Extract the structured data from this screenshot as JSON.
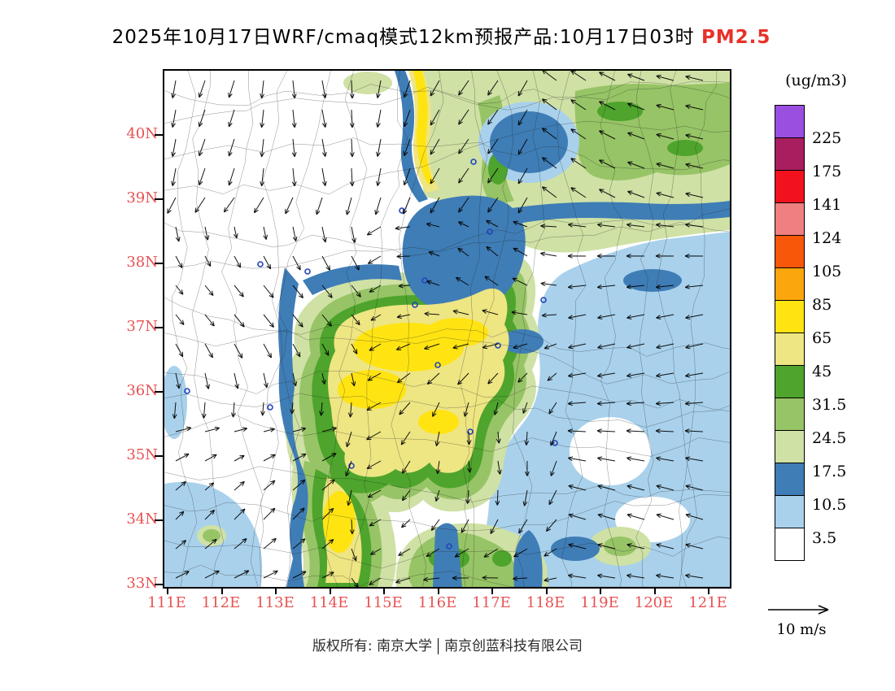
{
  "title": {
    "text": "2025年10月17日WRF/cmaq模式12km预报产品:10月17日03时",
    "pollutant": "PM2.5"
  },
  "colors": {
    "title_highlight": "#e8312a",
    "axis_label": "#e85252",
    "marker_blue": "#2244bb"
  },
  "axes": {
    "lat": [
      "40N",
      "39N",
      "38N",
      "37N",
      "36N",
      "35N",
      "34N",
      "33N"
    ],
    "lon": [
      "111E",
      "112E",
      "113E",
      "114E",
      "115E",
      "116E",
      "117E",
      "118E",
      "119E",
      "120E",
      "121E"
    ]
  },
  "legend": {
    "unit": "(ug/m3)",
    "labels": [
      "225",
      "175",
      "141",
      "124",
      "105",
      "85",
      "65",
      "45",
      "31.5",
      "24.5",
      "17.5",
      "10.5",
      "3.5"
    ],
    "colors": [
      "#9b4fe0",
      "#a81e5e",
      "#f2121e",
      "#ef7f81",
      "#f8570a",
      "#fba60c",
      "#ffe412",
      "#eee583",
      "#4ea42c",
      "#97c466",
      "#cfe1a5",
      "#3f7db6",
      "#a9d1ec",
      "#ffffff"
    ]
  },
  "wind_scale": {
    "label": "10 m/s"
  },
  "footer": {
    "left": "版权所有: 南京大学",
    "right": "南京创蓝科技有限公司"
  }
}
